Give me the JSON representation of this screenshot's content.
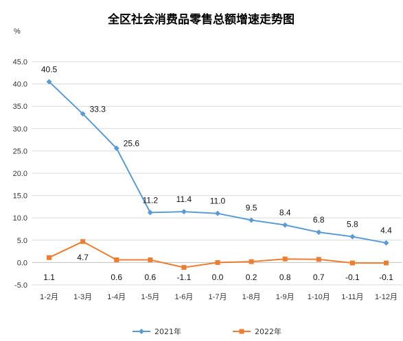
{
  "chart_data": {
    "type": "line",
    "title": "全区社会消费品零售总额增速走势图",
    "ylabel": "%",
    "ylim": [
      -5,
      45
    ],
    "yticks": [
      "-5.0",
      "0.0",
      "5.0",
      "10.0",
      "15.0",
      "20.0",
      "25.0",
      "30.0",
      "35.0",
      "40.0",
      "45.0"
    ],
    "grid": true,
    "legend_position": "bottom",
    "categories": [
      "1-2月",
      "1-3月",
      "1-4月",
      "1-5月",
      "1-6月",
      "1-7月",
      "1-8月",
      "1-9月",
      "1-10月",
      "1-11月",
      "1-12月"
    ],
    "series": [
      {
        "name": "2021年",
        "color": "#5b9bd5",
        "marker": "diamond",
        "values": [
          40.5,
          33.3,
          25.6,
          11.2,
          11.4,
          11.0,
          9.5,
          8.4,
          6.8,
          5.8,
          4.4
        ],
        "labels": [
          "40.5",
          "33.3",
          "25.6",
          "11.2",
          "11.4",
          "11.0",
          "9.5",
          "8.4",
          "6.8",
          "5.8",
          "4.4"
        ]
      },
      {
        "name": "2022年",
        "color": "#ed7d31",
        "marker": "square",
        "values": [
          1.1,
          4.7,
          0.6,
          0.6,
          -1.1,
          0.0,
          0.2,
          0.8,
          0.7,
          -0.1,
          -0.1
        ],
        "labels": [
          "1.1",
          "4.7",
          "0.6",
          "0.6",
          "-1.1",
          "0.0",
          "0.2",
          "0.8",
          "0.7",
          "-0.1",
          "-0.1"
        ]
      }
    ]
  }
}
